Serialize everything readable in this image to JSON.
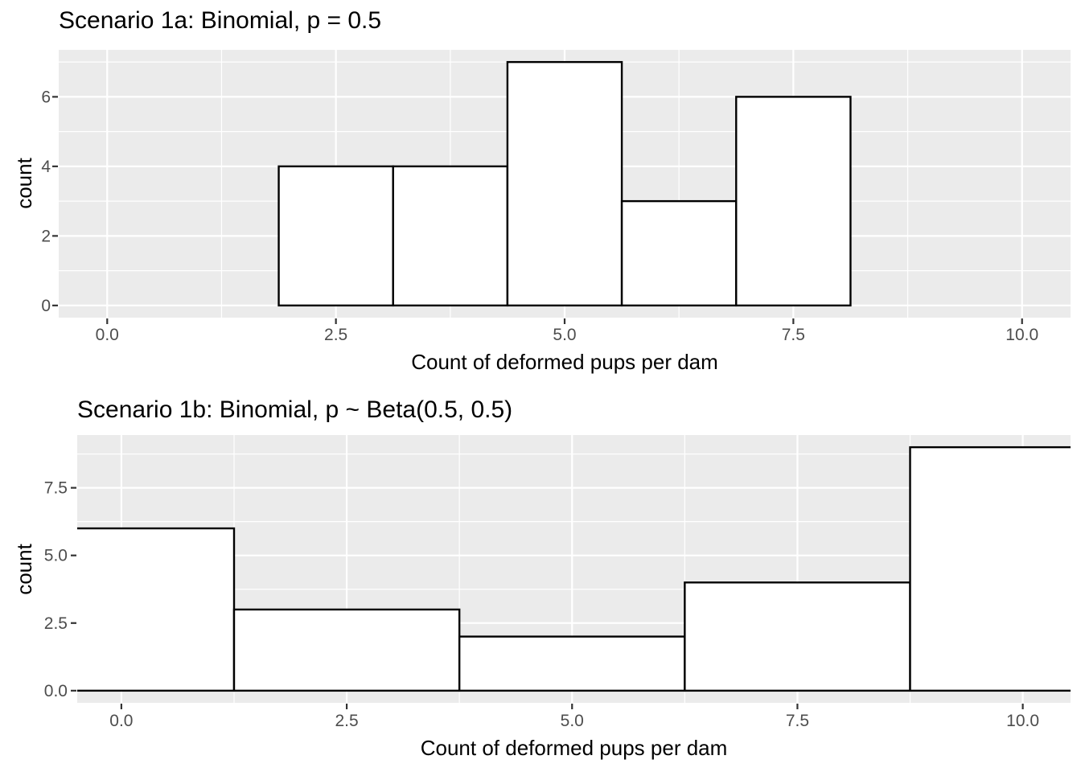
{
  "page": {
    "background": "#FFFFFF"
  },
  "colors": {
    "panel_bg": "#EBEBEB",
    "grid_major": "#FFFFFF",
    "grid_minor": "#FFFFFF",
    "bar_fill": "#FFFFFF",
    "bar_stroke": "#000000",
    "tick_mark": "#333333",
    "tick_label": "#4D4D4D",
    "title_text": "#000000"
  },
  "chart_data": [
    {
      "type": "bar",
      "subtype": "histogram",
      "title": "Scenario 1a: Binomial, p = 0.5",
      "xlabel": "Count of deformed pups per dam",
      "ylabel": "count",
      "bin_edges": [
        1.875,
        3.125,
        4.375,
        5.625,
        6.875,
        8.125
      ],
      "counts": [
        4,
        4,
        7,
        3,
        6
      ],
      "x_tick_values": [
        0,
        2.5,
        5,
        7.5,
        10
      ],
      "x_tick_labels": [
        "0.0",
        "2.5",
        "5.0",
        "7.5",
        "10.0"
      ],
      "x_minor_ticks": [
        1.25,
        3.75,
        6.25,
        8.75
      ],
      "y_tick_values": [
        0,
        2,
        4,
        6
      ],
      "y_tick_labels": [
        "0",
        "2",
        "4",
        "6"
      ],
      "y_minor_ticks": [
        1,
        3,
        5,
        7
      ],
      "xlim": [
        -0.53,
        10.53
      ],
      "ylim": [
        -0.35,
        7.35
      ],
      "grid": true,
      "legend": false
    },
    {
      "type": "bar",
      "subtype": "histogram",
      "title": "Scenario 1b: Binomial, p ~ Beta(0.5, 0.5)",
      "xlabel": "Count of deformed pups per dam",
      "ylabel": "count",
      "bin_edges": [
        -1.25,
        1.25,
        3.75,
        6.25,
        8.75,
        11.25
      ],
      "counts": [
        6,
        3,
        2,
        4,
        9
      ],
      "x_tick_values": [
        0,
        2.5,
        5,
        7.5,
        10
      ],
      "x_tick_labels": [
        "0.0",
        "2.5",
        "5.0",
        "7.5",
        "10.0"
      ],
      "x_minor_ticks": [
        1.25,
        3.75,
        6.25,
        8.75
      ],
      "y_tick_values": [
        0,
        2.5,
        5,
        7.5
      ],
      "y_tick_labels": [
        "0.0",
        "2.5",
        "5.0",
        "7.5"
      ],
      "y_minor_ticks": [
        1.25,
        3.75,
        6.25,
        8.75
      ],
      "xlim": [
        -0.49,
        10.53
      ],
      "ylim": [
        -0.45,
        9.45
      ],
      "grid": true,
      "legend": false
    }
  ]
}
